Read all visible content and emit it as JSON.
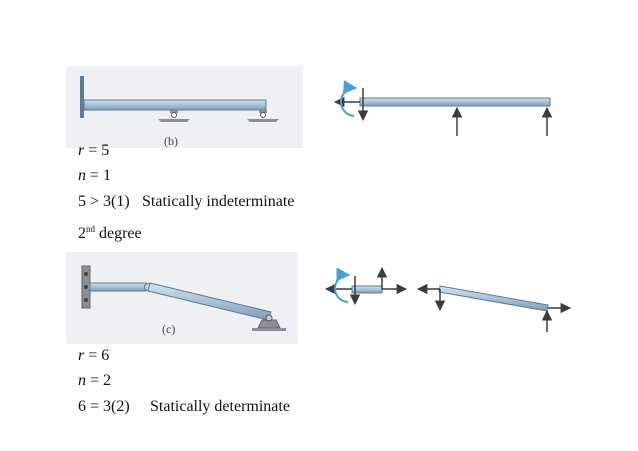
{
  "figure_b": {
    "label": "(b)",
    "eq_r": {
      "var": "r",
      "rhs": " = 5"
    },
    "eq_n": {
      "var": "n",
      "rhs": " = 1"
    },
    "compare": "5 > 3(1)",
    "result": "Statically indeterminate",
    "degree_num": "2",
    "degree_sup": "nd",
    "degree_word": " degree"
  },
  "figure_c": {
    "label": "(c)",
    "eq_r": {
      "var": "r",
      "rhs": " = 6"
    },
    "eq_n": {
      "var": "n",
      "rhs": " = 2"
    },
    "compare": "6 = 3(2)",
    "result": "Statically determinate"
  },
  "colors": {
    "beam_fill": "#a9c2d8",
    "beam_stroke": "#5e7b95",
    "support": "#8b9096",
    "arrow": "#3c3c3c",
    "moment": "#4a9fd8",
    "panel_bg": "#eef0f3"
  },
  "icons": [
    "fixed-wall-icon",
    "roller-support-icon",
    "pin-support-icon",
    "moment-arrow-icon",
    "force-arrow-icon"
  ]
}
